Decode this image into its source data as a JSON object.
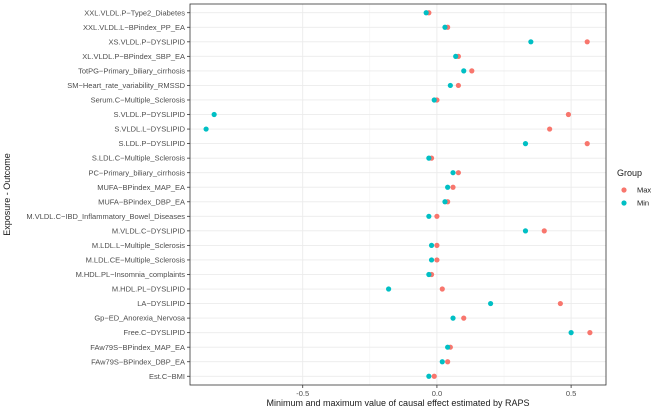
{
  "chart_data": {
    "type": "scatter",
    "xlabel": "Minimum and maximum value of causal effect estimated by RAPS",
    "ylabel": "Exposure - Outcome",
    "xlim": [
      -0.92,
      0.63
    ],
    "x_ticks": [
      -0.5,
      0.0,
      0.5
    ],
    "x_tick_labels": [
      "-0.5",
      "0.0",
      "0.5"
    ],
    "grid": true,
    "legend": {
      "title": "Group",
      "position": "right",
      "entries": [
        "Max",
        "Min"
      ]
    },
    "colors": {
      "Max": "#F8766D",
      "Min": "#00BFC4"
    },
    "categories": [
      "XXL.VLDL.P−Type2_Diabetes",
      "XXL.VLDL.L−BPindex_PP_EA",
      "XS.VLDL.P−DYSLIPID",
      "XL.VLDL.P−BPindex_SBP_EA",
      "TotPG−Primary_biliary_cirrhosis",
      "SM−Heart_rate_variability_RMSSD",
      "Serum.C−Multiple_Sclerosis",
      "S.VLDL.P−DYSLIPID",
      "S.VLDL.L−DYSLIPID",
      "S.LDL.P−DYSLIPID",
      "S.LDL.C−Multiple_Sclerosis",
      "PC−Primary_biliary_cirrhosis",
      "MUFA−BPindex_MAP_EA",
      "MUFA−BPindex_DBP_EA",
      "M.VLDL.C−IBD_Inflammatory_Bowel_Diseases",
      "M.VLDL.C−DYSLIPID",
      "M.LDL.L−Multiple_Sclerosis",
      "M.LDL.CE−Multiple_Sclerosis",
      "M.HDL.PL−Insomnia_complaints",
      "M.HDL.PL−DYSLIPID",
      "LA−DYSLIPID",
      "Gp−ED_Anorexia_Nervosa",
      "Free.C−DYSLIPID",
      "FAw79S−BPindex_MAP_EA",
      "FAw79S−BPindex_DBP_EA",
      "Est.C−BMI"
    ],
    "series": [
      {
        "name": "Max",
        "values": [
          -0.03,
          0.04,
          0.56,
          0.08,
          0.13,
          0.08,
          0.0,
          0.49,
          0.42,
          0.56,
          -0.02,
          0.08,
          0.06,
          0.04,
          0.0,
          0.4,
          0.0,
          0.0,
          -0.02,
          0.02,
          0.46,
          0.1,
          0.57,
          0.05,
          0.04,
          -0.01
        ]
      },
      {
        "name": "Min",
        "values": [
          -0.04,
          0.03,
          0.35,
          0.07,
          0.1,
          0.05,
          -0.01,
          -0.83,
          -0.86,
          0.33,
          -0.03,
          0.06,
          0.04,
          0.03,
          -0.03,
          0.33,
          -0.02,
          -0.02,
          -0.03,
          -0.18,
          0.2,
          0.06,
          0.5,
          0.04,
          0.02,
          -0.03
        ]
      }
    ]
  }
}
